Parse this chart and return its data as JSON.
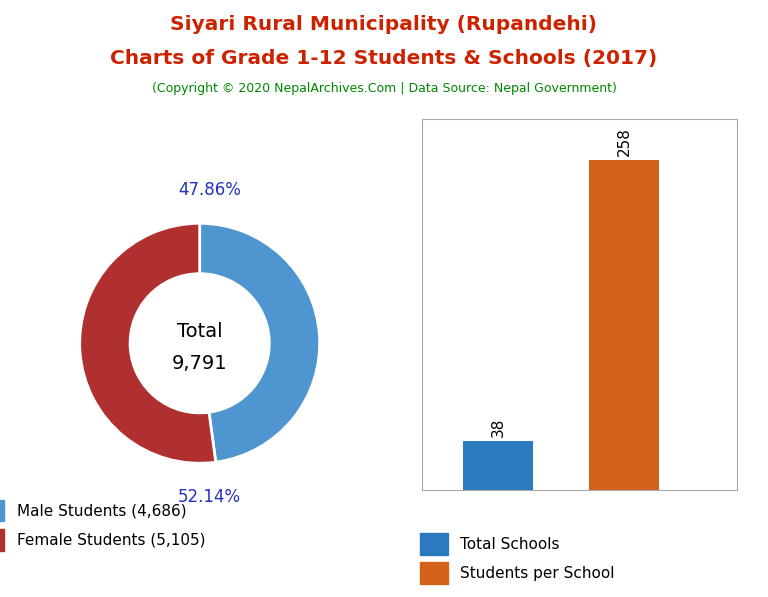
{
  "title_line1": "Siyari Rural Municipality (Rupandehi)",
  "title_line2": "Charts of Grade 1-12 Students & Schools (2017)",
  "subtitle": "(Copyright © 2020 NepalArchives.Com | Data Source: Nepal Government)",
  "title_color": "#cc2200",
  "subtitle_color": "#008800",
  "male_students": 4686,
  "female_students": 5105,
  "total_students": 9791,
  "male_pct": "47.86%",
  "female_pct": "52.14%",
  "male_color": "#4f96d0",
  "female_color": "#b03030",
  "donut_edge_color": "#ffffff",
  "total_schools": 38,
  "students_per_school": 258,
  "bar_blue_color": "#2b7abf",
  "bar_orange_color": "#d4621a",
  "legend_schools_label": "Total Schools",
  "legend_students_label": "Students per School",
  "pct_label_color": "#2233bb",
  "background_color": "#ffffff"
}
